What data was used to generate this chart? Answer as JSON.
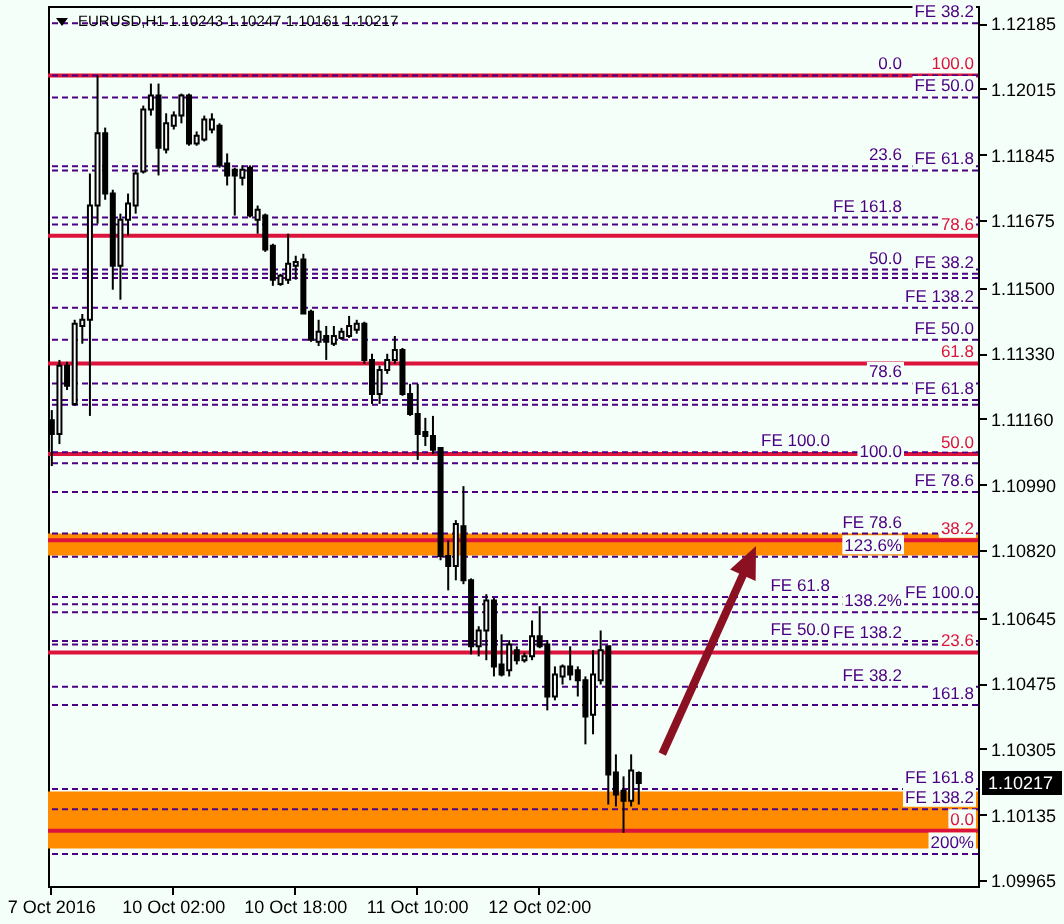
{
  "chart_data": {
    "type": "candlestick",
    "title": "EURUSD,H1 1.10243 1.10247 1.10161 1.10217",
    "categories": [
      "7 Oct 2016",
      null,
      null,
      null,
      null,
      null,
      null,
      null,
      null,
      null,
      null,
      null,
      null,
      null,
      null,
      null,
      "10 Oct 02:00",
      null,
      null,
      null,
      null,
      null,
      null,
      null,
      null,
      null,
      null,
      null,
      null,
      null,
      null,
      null,
      "10 Oct 18:00",
      null,
      null,
      null,
      null,
      null,
      null,
      null,
      null,
      null,
      null,
      null,
      null,
      null,
      null,
      null,
      "11 Oct 10:00",
      null,
      null,
      null,
      null,
      null,
      null,
      null,
      null,
      null,
      null,
      null,
      null,
      null,
      null,
      null,
      "12 Oct 02:00",
      null,
      null,
      null,
      null,
      null,
      null,
      null,
      null,
      null,
      null,
      null,
      null,
      null,
      null,
      null,
      null,
      null,
      null,
      null,
      null,
      null,
      null,
      null,
      null,
      null,
      null,
      null,
      null,
      null,
      null,
      null,
      null,
      null,
      null,
      null,
      null,
      null,
      null,
      null,
      null,
      null,
      null,
      null,
      null,
      null,
      null,
      null,
      null,
      null,
      null,
      null,
      null,
      null,
      null,
      null,
      null,
      null
    ],
    "ohlc": [
      [
        1.11157,
        1.11183,
        1.11038,
        1.11121
      ],
      [
        1.11121,
        1.11313,
        1.11095,
        1.11298
      ],
      [
        1.11298,
        1.11308,
        1.11235,
        1.11246
      ],
      [
        1.11199,
        1.11417,
        1.11194,
        1.11407
      ],
      [
        1.11401,
        1.11432,
        1.11355,
        1.11417
      ],
      [
        1.11417,
        1.11796,
        1.11168,
        1.11713
      ],
      [
        1.11713,
        1.1205,
        1.11666,
        1.119
      ],
      [
        1.119,
        1.11915,
        1.11728,
        1.11744
      ],
      [
        1.11744,
        1.11754,
        1.11495,
        1.11557
      ],
      [
        1.11557,
        1.11692,
        1.11469,
        1.11676
      ],
      [
        1.11676,
        1.11744,
        1.11635,
        1.11718
      ],
      [
        1.11713,
        1.11806,
        1.11692,
        1.11796
      ],
      [
        1.11801,
        1.11972,
        1.11796,
        1.11962
      ],
      [
        1.11962,
        1.12029,
        1.11946,
        1.11998
      ],
      [
        1.11998,
        1.12029,
        1.11791,
        1.11863
      ],
      [
        1.11858,
        1.11952,
        1.11848,
        1.11926
      ],
      [
        1.1192,
        1.11957,
        1.1191,
        1.11946
      ],
      [
        1.11946,
        1.12003,
        1.11926,
        1.11998
      ],
      [
        1.11998,
        1.12003,
        1.11868,
        1.11874
      ],
      [
        1.11874,
        1.11905,
        1.11868,
        1.11894
      ],
      [
        1.11884,
        1.11946,
        1.11879,
        1.11936
      ],
      [
        1.1191,
        1.11952,
        1.119,
        1.11936
      ],
      [
        1.1192,
        1.11926,
        1.11811,
        1.11817
      ],
      [
        1.11822,
        1.11848,
        1.11765,
        1.11791
      ],
      [
        1.11806,
        1.11811,
        1.11687,
        1.11791
      ],
      [
        1.11785,
        1.11817,
        1.11765,
        1.11806
      ],
      [
        1.11811,
        1.11817,
        1.11682,
        1.11687
      ],
      [
        1.11676,
        1.11713,
        1.1164,
        1.11702
      ],
      [
        1.11687,
        1.11692,
        1.11593,
        1.11599
      ],
      [
        1.11609,
        1.11614,
        1.11505,
        1.11521
      ],
      [
        1.1151,
        1.11536,
        1.11505,
        1.11531
      ],
      [
        1.11521,
        1.1164,
        1.1151,
        1.11562
      ],
      [
        1.11557,
        1.11583,
        1.11521,
        1.11567
      ],
      [
        1.11573,
        1.11588,
        1.11433,
        1.11433
      ],
      [
        1.11438,
        1.11443,
        1.1136,
        1.11365
      ],
      [
        1.1136,
        1.11417,
        1.11349,
        1.11386
      ],
      [
        1.11375,
        1.11401,
        1.11313,
        1.1136
      ],
      [
        1.11355,
        1.11401,
        1.11349,
        1.11375
      ],
      [
        1.1137,
        1.11396,
        1.11365,
        1.11386
      ],
      [
        1.11375,
        1.11427,
        1.1137,
        1.11401
      ],
      [
        1.11391,
        1.11417,
        1.11381,
        1.11407
      ],
      [
        1.11407,
        1.11412,
        1.11303,
        1.11313
      ],
      [
        1.11313,
        1.11329,
        1.11199,
        1.11225
      ],
      [
        1.11225,
        1.11298,
        1.11199,
        1.11287
      ],
      [
        1.11287,
        1.11329,
        1.11277,
        1.11313
      ],
      [
        1.11313,
        1.11375,
        1.11303,
        1.11339
      ],
      [
        1.11339,
        1.11344,
        1.1122,
        1.11225
      ],
      [
        1.11225,
        1.11251,
        1.11168,
        1.11173
      ],
      [
        1.11173,
        1.11251,
        1.11054,
        1.11121
      ],
      [
        1.11126,
        1.11163,
        1.1109,
        1.11116
      ],
      [
        1.11116,
        1.11168,
        1.11069,
        1.1108
      ],
      [
        1.11085,
        1.11085,
        1.10794,
        1.10805
      ],
      [
        1.10805,
        1.10846,
        1.10716,
        1.10779
      ],
      [
        1.10779,
        1.10898,
        1.10742,
        1.10888
      ],
      [
        1.10882,
        1.10986,
        1.10732,
        1.10742
      ],
      [
        1.10742,
        1.10747,
        1.1055,
        1.10571
      ],
      [
        1.10571,
        1.10623,
        1.10545,
        1.10612
      ],
      [
        1.10612,
        1.10706,
        1.10535,
        1.1069
      ],
      [
        1.1069,
        1.10696,
        1.10493,
        1.10519
      ],
      [
        1.10524,
        1.10602,
        1.10493,
        1.10498
      ],
      [
        1.10509,
        1.10587,
        1.10493,
        1.10576
      ],
      [
        1.10561,
        1.10571,
        1.10524,
        1.10535
      ],
      [
        1.10535,
        1.10555,
        1.10529,
        1.10545
      ],
      [
        1.10545,
        1.10638,
        1.10535,
        1.10597
      ],
      [
        1.10597,
        1.10675,
        1.10566,
        1.10571
      ],
      [
        1.10576,
        1.10587,
        1.10405,
        1.10441
      ],
      [
        1.10441,
        1.10519,
        1.10431,
        1.10498
      ],
      [
        1.10493,
        1.10524,
        1.10472,
        1.10519
      ],
      [
        1.10519,
        1.10571,
        1.10483,
        1.10498
      ],
      [
        1.10509,
        1.10519,
        1.10441,
        1.10483
      ],
      [
        1.10483,
        1.10493,
        1.10317,
        1.10389
      ],
      [
        1.10394,
        1.10561,
        1.10343,
        1.10498
      ],
      [
        1.10483,
        1.10612,
        1.10472,
        1.10561
      ],
      [
        1.10571,
        1.10571,
        1.10161,
        1.10239
      ],
      [
        1.10244,
        1.10291,
        1.10156,
        1.10187
      ],
      [
        1.10197,
        1.10234,
        1.10088,
        1.10171
      ],
      [
        1.10171,
        1.10291,
        1.10156,
        1.10249
      ],
      [
        1.10243,
        1.10247,
        1.10161,
        1.10217
      ],
      null,
      null,
      null,
      null,
      null,
      null,
      null,
      null,
      null,
      null,
      null,
      null,
      null,
      null,
      null,
      null,
      null,
      null,
      null,
      null,
      null,
      null,
      null,
      null,
      null,
      null,
      null,
      null,
      null,
      null,
      null,
      null,
      null,
      null,
      null,
      null,
      null,
      null,
      null,
      null,
      null,
      null,
      null,
      null
    ],
    "ylim": [
      1.0995,
      1.1223
    ],
    "yticks": [
      1.12185,
      1.12015,
      1.11845,
      1.11675,
      {
        "value": 1.115,
        "label": "1.11500"
      },
      {
        "value": 1.1133,
        "label": "1.11330"
      },
      {
        "value": 1.1116,
        "label": "1.11160"
      },
      {
        "value": 1.1099,
        "label": "1.10990"
      },
      {
        "value": 1.1082,
        "label": "1.10820"
      },
      1.10645,
      1.10475,
      1.10305,
      1.10135,
      1.09965
    ],
    "bands": [
      {
        "axis": "y",
        "from": 1.10806,
        "to": 1.10863,
        "color": "#ff8c00"
      },
      {
        "axis": "y",
        "from": 1.10047,
        "to": 1.10195,
        "color": "#ff8c00"
      }
    ],
    "ref_lines": [
      {
        "axis": "y",
        "value": 1.1205,
        "color": "#dc143c",
        "line_style": "solid"
      },
      {
        "axis": "y",
        "value": 1.11635,
        "color": "#dc143c",
        "line_style": "solid"
      },
      {
        "axis": "y",
        "value": 1.11304,
        "color": "#dc143c",
        "line_style": "solid"
      },
      {
        "axis": "y",
        "value": 1.11069,
        "color": "#dc143c",
        "line_style": "solid"
      },
      {
        "axis": "y",
        "value": 1.10846,
        "color": "#dc143c",
        "line_style": "solid"
      },
      {
        "axis": "y",
        "value": 1.10555,
        "color": "#dc143c",
        "line_style": "solid"
      },
      {
        "axis": "y",
        "value": 1.10093,
        "color": "#dc143c",
        "line_style": "solid"
      },
      {
        "axis": "y",
        "value": 1.12185,
        "label": "FE 38.2",
        "color": "#4b0082",
        "line_style": "dashed"
      },
      {
        "axis": "y",
        "value": 1.11993,
        "label": "FE 50.0",
        "color": "#4b0082",
        "line_style": "dashed"
      },
      {
        "axis": "y",
        "value": 1.11804,
        "label": "FE 61.8",
        "color": "#4b0082",
        "line_style": "dashed"
      },
      {
        "axis": "y",
        "value": 1.11525,
        "color": "#4b0082",
        "line_style": "dashed"
      },
      {
        "axis": "y",
        "value": 1.11197,
        "color": "#4b0082",
        "line_style": "dashed"
      },
      {
        "axis": "y",
        "value": 1.10576,
        "label": "FE 138.2",
        "color": "#4b0082",
        "line_style": "dashed"
      },
      {
        "axis": "y",
        "value": 1.10201,
        "label": "FE 161.8",
        "color": "#4b0082",
        "line_style": "dashed"
      },
      {
        "axis": "y",
        "value": 1.11536,
        "label": "FE 38.2",
        "color": "#4b0082",
        "line_style": "dashed"
      },
      {
        "axis": "y",
        "value": 1.11365,
        "label": "FE 50.0",
        "color": "#4b0082",
        "line_style": "dashed"
      },
      {
        "axis": "y",
        "value": 1.11209,
        "label": "FE 61.8",
        "color": "#4b0082",
        "line_style": "dashed"
      },
      {
        "axis": "y",
        "value": 1.10971,
        "label": "FE 78.6",
        "color": "#4b0082",
        "line_style": "dashed"
      },
      {
        "axis": "y",
        "value": 1.1068,
        "label": "FE 100.0",
        "color": "#4b0082",
        "line_style": "dashed"
      },
      {
        "axis": "y",
        "value": 1.10149,
        "label": "FE 138.2",
        "color": "#4b0082",
        "line_style": "dashed"
      },
      {
        "axis": "y",
        "value": 1.1205,
        "color": "#4b0082",
        "line_style": "dashed"
      },
      {
        "axis": "y",
        "value": 1.11815,
        "color": "#4b0082",
        "line_style": "dashed"
      },
      {
        "axis": "y",
        "value": 1.11547,
        "color": "#4b0082",
        "line_style": "dashed"
      },
      {
        "axis": "y",
        "value": 1.11252,
        "color": "#4b0082",
        "line_style": "dashed"
      },
      {
        "axis": "y",
        "value": 1.11045,
        "color": "#4b0082",
        "line_style": "dashed"
      },
      {
        "axis": "y",
        "value": 1.10803,
        "color": "#4b0082",
        "line_style": "dashed"
      },
      {
        "axis": "y",
        "value": 1.10659,
        "color": "#4b0082",
        "line_style": "dashed"
      },
      {
        "axis": "y",
        "value": 1.10419,
        "color": "#4b0082",
        "line_style": "dashed"
      },
      {
        "axis": "y",
        "value": 1.10033,
        "color": "#4b0082",
        "line_style": "dashed"
      },
      {
        "axis": "y",
        "value": 1.11682,
        "label": "FE 161.8",
        "color": "#4b0082",
        "line_style": "dashed"
      },
      {
        "axis": "y",
        "value": 1.11448,
        "label": "FE 138.2",
        "color": "#4b0082",
        "line_style": "dashed"
      },
      {
        "axis": "y",
        "value": 1.11074,
        "label": "FE 100.0",
        "color": "#4b0082",
        "line_style": "dashed"
      },
      {
        "axis": "y",
        "value": 1.10863,
        "label": "FE 78.6",
        "color": "#4b0082",
        "line_style": "dashed"
      },
      {
        "axis": "y",
        "value": 1.10699,
        "label": "FE 61.8",
        "color": "#4b0082",
        "line_style": "dashed"
      },
      {
        "axis": "y",
        "value": 1.10585,
        "label": "FE 50.0",
        "color": "#4b0082",
        "line_style": "dashed"
      },
      {
        "axis": "y",
        "value": 1.10466,
        "label": "FE 38.2",
        "color": "#4b0082",
        "line_style": "dashed"
      },
      {
        "axis": "y",
        "value": 1.11664,
        "color": "#4b0082",
        "line_style": "dashed"
      }
    ],
    "annotations": [
      {
        "text": "100.0",
        "y": 1.1205
      },
      {
        "text": "78.6",
        "y": 1.11635
      },
      {
        "text": "61.8",
        "y": 1.11304
      },
      {
        "text": "50.0",
        "y": 1.11069
      },
      {
        "text": "38.2",
        "y": 1.10846
      },
      {
        "text": "23.6",
        "y": 1.10555
      },
      {
        "text": "0.0",
        "y": 1.10093
      },
      {
        "text": "0.0",
        "y": 1.1205
      },
      {
        "text": "23.6",
        "y": 1.11815
      },
      {
        "text": "50.0",
        "y": 1.11547
      },
      {
        "text": "78.6",
        "y": 1.11252
      },
      {
        "text": "100.0",
        "y": 1.11045
      },
      {
        "text": "123.6%",
        "y": 1.10803
      },
      {
        "text": "138.2%",
        "y": 1.10659
      },
      {
        "text": "161.8",
        "y": 1.10419
      },
      {
        "text": "200%",
        "y": 1.10033
      },
      {
        "text": "1.10217",
        "y": 1.10217
      }
    ]
  }
}
